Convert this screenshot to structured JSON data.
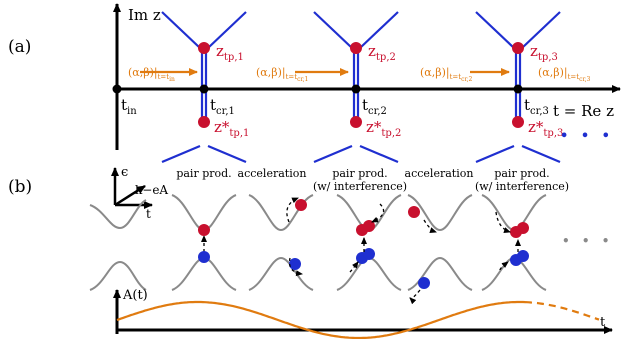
{
  "panel_a": {
    "label": "(a)",
    "im_axis": "Im z",
    "re_axis": "t = Re z",
    "t_in": "t",
    "t_in_sub": "in",
    "crossings": [
      {
        "t": "t",
        "sub": "cr,1",
        "tp": "z",
        "tp_sub": "tp,1",
        "tp_conj": "z*",
        "tp_conj_sub": "tp,1"
      },
      {
        "t": "t",
        "sub": "cr,2",
        "tp": "z",
        "tp_sub": "tp,2",
        "tp_conj": "z*",
        "tp_conj_sub": "tp,2"
      },
      {
        "t": "t",
        "sub": "cr,3",
        "tp": "z",
        "tp_sub": "tp,3",
        "tp_conj": "z*",
        "tp_conj_sub": "tp,3"
      }
    ],
    "arrow_labels": [
      {
        "main": "(α,β)|",
        "sub": "t=t",
        "subsub": "in"
      },
      {
        "main": "(α,β)|",
        "sub": "t=t",
        "subsub": "cr,1"
      },
      {
        "main": "(α,β)|",
        "sub": "t=t",
        "subsub": "cr,2"
      },
      {
        "main": "(α,β)|",
        "sub": "t=t",
        "subsub": "cr,3"
      }
    ],
    "ellipsis": "• • •"
  },
  "panel_b": {
    "label": "(b)",
    "axis_epsilon": "ϵ",
    "axis_k": "k−eA",
    "axis_t": "t",
    "stage_labels": [
      {
        "line1": "pair prod.",
        "line2": ""
      },
      {
        "line1": "acceleration",
        "line2": ""
      },
      {
        "line1": "pair prod.",
        "line2": "(w/ interference)"
      },
      {
        "line1": "acceleration",
        "line2": ""
      },
      {
        "line1": "pair prod.",
        "line2": "(w/ interference)"
      }
    ],
    "ellipsis": "• • •",
    "field_label": "A(t)",
    "time_label": "t"
  },
  "colors": {
    "red": "#c8102e",
    "blue": "#1f2fd0",
    "orange": "#e07b10",
    "gray": "#8a8a8a",
    "black": "#000000"
  }
}
